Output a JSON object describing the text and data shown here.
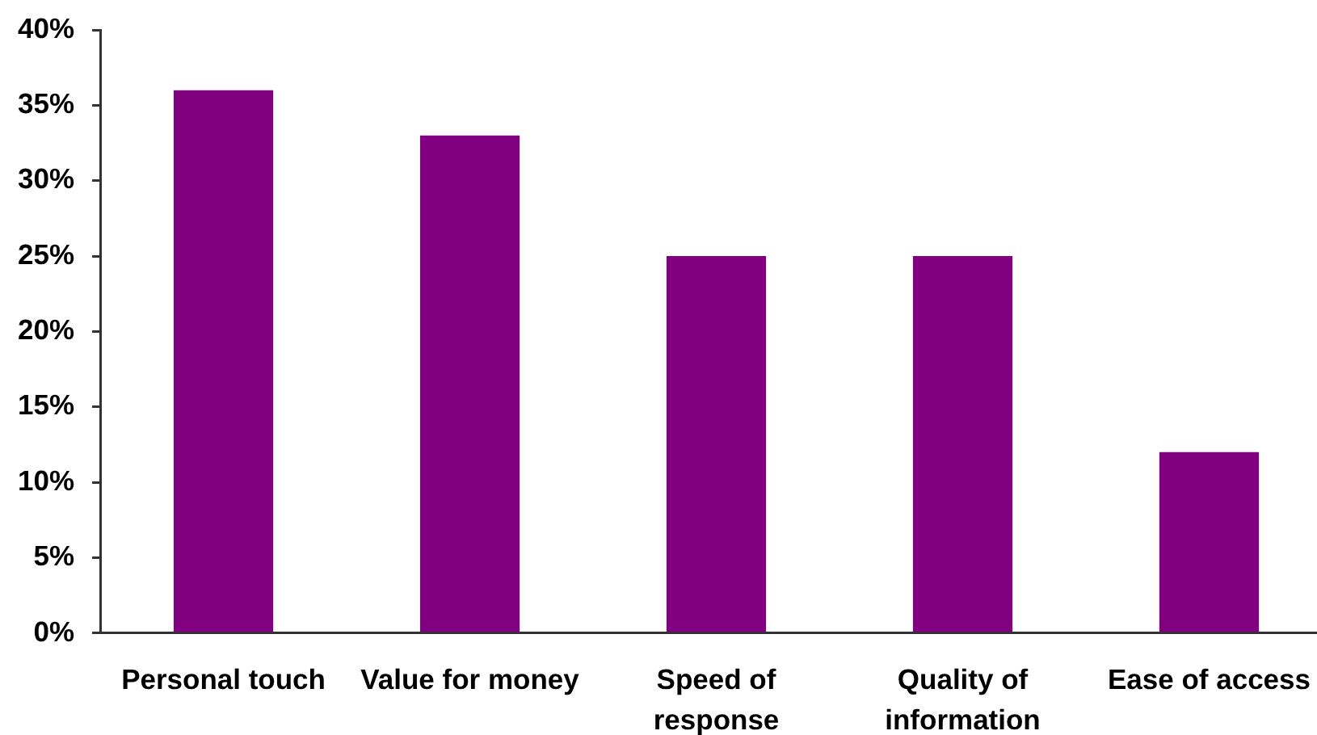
{
  "chart_data": {
    "type": "bar",
    "categories": [
      "Personal touch",
      "Value for money",
      "Speed of response",
      "Quality of information",
      "Ease of access"
    ],
    "values": [
      36,
      33,
      25,
      25,
      12
    ],
    "color": "#800080",
    "ylim": [
      0,
      40
    ],
    "yticks": [
      {
        "value": 0,
        "label": "0%"
      },
      {
        "value": 5,
        "label": "5%"
      },
      {
        "value": 10,
        "label": "10%"
      },
      {
        "value": 15,
        "label": "15%"
      },
      {
        "value": 20,
        "label": "20%"
      },
      {
        "value": 25,
        "label": "25%"
      },
      {
        "value": 30,
        "label": "30%"
      },
      {
        "value": 35,
        "label": "35%"
      },
      {
        "value": 40,
        "label": "40%"
      }
    ]
  }
}
